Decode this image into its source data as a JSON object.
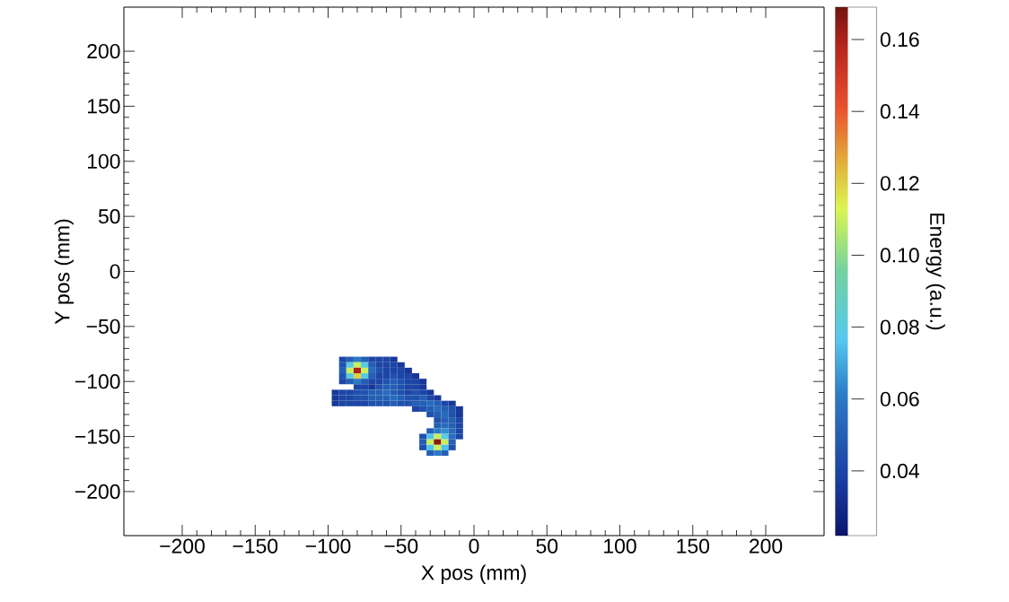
{
  "chart_data": {
    "type": "scatter",
    "xlabel": "X pos (mm)",
    "ylabel": "Y pos (mm)",
    "clabel": "Energy (a.u.)",
    "marker": "square",
    "xlim": [
      -240,
      240
    ],
    "ylim": [
      -240,
      240
    ],
    "xticks": [
      {
        "value": -200,
        "label": "−200"
      },
      {
        "value": -150,
        "label": "−150"
      },
      {
        "value": -100,
        "label": "−100"
      },
      {
        "value": -50,
        "label": "−50"
      },
      0,
      50,
      100,
      150,
      200
    ],
    "yticks": [
      {
        "value": -200,
        "label": "−200"
      },
      {
        "value": -150,
        "label": "−150"
      },
      {
        "value": -100,
        "label": "−100"
      },
      {
        "value": -50,
        "label": "−50"
      },
      0,
      50,
      100,
      150,
      200
    ],
    "clim": [
      0.022,
      0.169
    ],
    "cticks": [
      0.04,
      0.06,
      0.08,
      {
        "value": 0.1,
        "label": "0.10"
      },
      0.12,
      0.14,
      0.16
    ],
    "x": [
      -90,
      -85,
      -80,
      -75,
      -70,
      -65,
      -60,
      -55,
      -90,
      -85,
      -80,
      -75,
      -70,
      -65,
      -60,
      -55,
      -50,
      -90,
      -85,
      -80,
      -75,
      -70,
      -65,
      -60,
      -55,
      -50,
      -45,
      -90,
      -85,
      -80,
      -75,
      -70,
      -65,
      -60,
      -55,
      -50,
      -45,
      -40,
      -90,
      -85,
      -80,
      -75,
      -70,
      -65,
      -60,
      -55,
      -50,
      -45,
      -40,
      -35,
      -80,
      -75,
      -70,
      -65,
      -60,
      -55,
      -50,
      -45,
      -40,
      -35,
      -95,
      -90,
      -85,
      -80,
      -75,
      -70,
      -65,
      -60,
      -55,
      -50,
      -45,
      -40,
      -35,
      -30,
      -95,
      -90,
      -85,
      -80,
      -75,
      -70,
      -65,
      -60,
      -55,
      -50,
      -45,
      -40,
      -35,
      -30,
      -25,
      -95,
      -90,
      -85,
      -80,
      -75,
      -70,
      -65,
      -60,
      -55,
      -50,
      -45,
      -40,
      -35,
      -30,
      -25,
      -20,
      -15,
      -40,
      -35,
      -30,
      -25,
      -20,
      -15,
      -10,
      -30,
      -25,
      -20,
      -15,
      -10,
      -25,
      -20,
      -15,
      -10,
      -25,
      -20,
      -15,
      -10,
      -30,
      -25,
      -20,
      -15,
      -10,
      -35,
      -30,
      -25,
      -20,
      -15,
      -10,
      -35,
      -30,
      -25,
      -20,
      -15,
      -35,
      -30,
      -25,
      -20,
      -15,
      -30,
      -25,
      -20
    ],
    "values": [
      -80,
      -80,
      -80,
      -80,
      -80,
      -80,
      -80,
      -80,
      -85,
      -85,
      -85,
      -85,
      -85,
      -85,
      -85,
      -85,
      -85,
      -90,
      -90,
      -90,
      -90,
      -90,
      -90,
      -90,
      -90,
      -90,
      -90,
      -95,
      -95,
      -95,
      -95,
      -95,
      -95,
      -95,
      -95,
      -95,
      -95,
      -95,
      -100,
      -100,
      -100,
      -100,
      -100,
      -100,
      -100,
      -100,
      -100,
      -100,
      -100,
      -100,
      -105,
      -105,
      -105,
      -105,
      -105,
      -105,
      -105,
      -105,
      -105,
      -105,
      -110,
      -110,
      -110,
      -110,
      -110,
      -110,
      -110,
      -110,
      -110,
      -110,
      -110,
      -110,
      -110,
      -110,
      -115,
      -115,
      -115,
      -115,
      -115,
      -115,
      -115,
      -115,
      -115,
      -115,
      -115,
      -115,
      -115,
      -115,
      -115,
      -120,
      -120,
      -120,
      -120,
      -120,
      -120,
      -120,
      -120,
      -120,
      -120,
      -120,
      -120,
      -120,
      -120,
      -120,
      -120,
      -120,
      -125,
      -125,
      -125,
      -125,
      -125,
      -125,
      -125,
      -130,
      -130,
      -130,
      -130,
      -130,
      -135,
      -135,
      -135,
      -135,
      -140,
      -140,
      -140,
      -140,
      -145,
      -145,
      -145,
      -145,
      -145,
      -150,
      -150,
      -150,
      -150,
      -150,
      -150,
      -155,
      -155,
      -155,
      -155,
      -155,
      -160,
      -160,
      -160,
      -160,
      -160,
      -165,
      -165,
      -165
    ],
    "cvalues": [
      0.04,
      0.05,
      0.06,
      0.05,
      0.04,
      0.04,
      0.04,
      0.035,
      0.045,
      0.08,
      0.11,
      0.08,
      0.05,
      0.04,
      0.04,
      0.04,
      0.035,
      0.05,
      0.11,
      0.16,
      0.11,
      0.055,
      0.045,
      0.04,
      0.04,
      0.04,
      0.035,
      0.045,
      0.08,
      0.12,
      0.08,
      0.05,
      0.04,
      0.04,
      0.045,
      0.04,
      0.04,
      0.035,
      0.04,
      0.05,
      0.06,
      0.05,
      0.04,
      0.04,
      0.045,
      0.05,
      0.045,
      0.04,
      0.04,
      0.035,
      0.04,
      0.04,
      0.035,
      0.045,
      0.05,
      0.05,
      0.045,
      0.04,
      0.04,
      0.035,
      0.035,
      0.04,
      0.04,
      0.045,
      0.045,
      0.05,
      0.05,
      0.055,
      0.05,
      0.045,
      0.04,
      0.045,
      0.04,
      0.035,
      0.035,
      0.04,
      0.04,
      0.045,
      0.045,
      0.05,
      0.05,
      0.05,
      0.055,
      0.05,
      0.045,
      0.045,
      0.05,
      0.04,
      0.035,
      0.035,
      0.04,
      0.04,
      0.04,
      0.04,
      0.045,
      0.045,
      0.045,
      0.05,
      0.045,
      0.045,
      0.05,
      0.05,
      0.055,
      0.05,
      0.04,
      0.035,
      0.04,
      0.045,
      0.05,
      0.055,
      0.05,
      0.045,
      0.035,
      0.045,
      0.05,
      0.055,
      0.045,
      0.035,
      0.045,
      0.05,
      0.05,
      0.04,
      0.05,
      0.055,
      0.05,
      0.04,
      0.05,
      0.06,
      0.065,
      0.055,
      0.04,
      0.045,
      0.075,
      0.11,
      0.08,
      0.055,
      0.04,
      0.05,
      0.11,
      0.165,
      0.11,
      0.05,
      0.045,
      0.075,
      0.11,
      0.075,
      0.045,
      0.05,
      0.06,
      0.05
    ]
  }
}
